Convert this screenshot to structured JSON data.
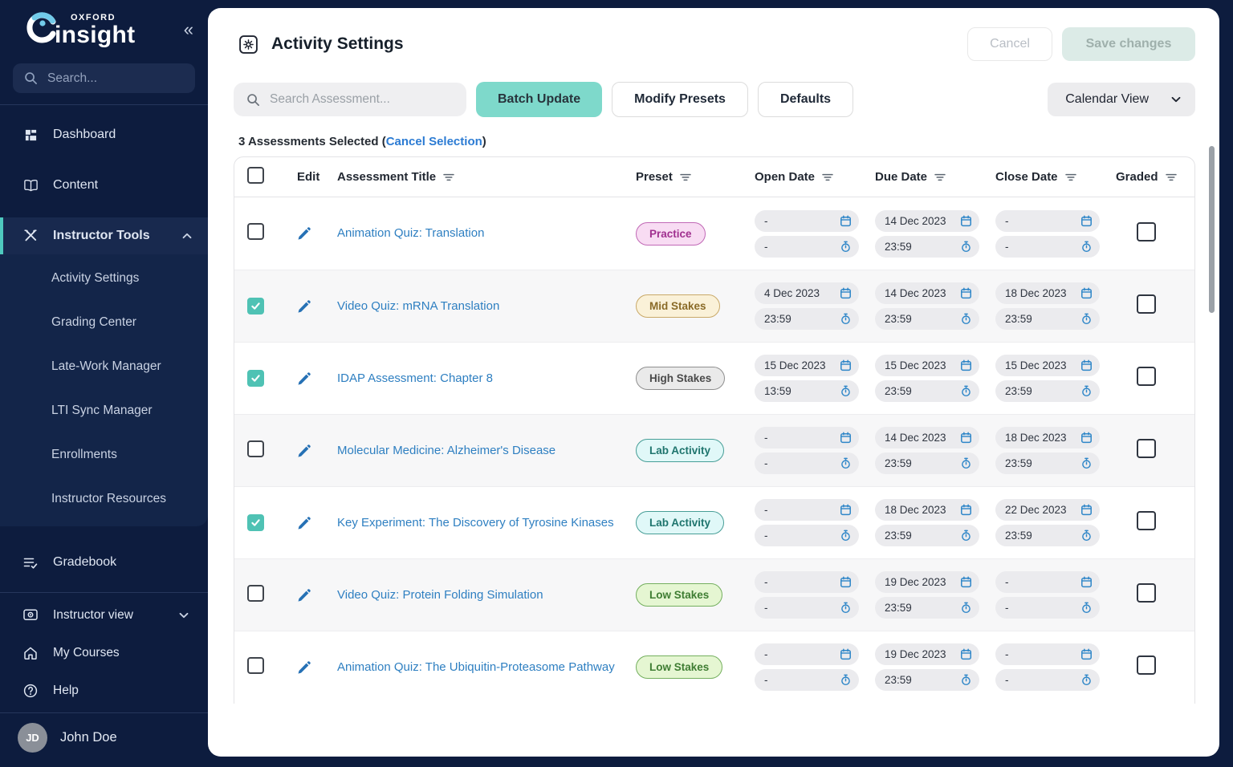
{
  "brand": {
    "oxford": "OXFORD",
    "insight": "insight",
    "collapse_glyph": "«"
  },
  "sidebar": {
    "search_placeholder": "Search...",
    "items": [
      {
        "label": "Dashboard"
      },
      {
        "label": "Content"
      },
      {
        "label": "Instructor Tools"
      }
    ],
    "submenu": [
      "Activity Settings",
      "Grading Center",
      "Late-Work Manager",
      "LTI Sync Manager",
      "Enrollments",
      "Instructor Resources"
    ],
    "gradebook_label": "Gradebook",
    "footer_items": [
      {
        "label": "Instructor view"
      },
      {
        "label": "My Courses"
      },
      {
        "label": "Help"
      }
    ],
    "user": {
      "initials": "JD",
      "name": "John Doe"
    }
  },
  "header": {
    "title": "Activity Settings",
    "cancel_label": "Cancel",
    "save_label": "Save changes"
  },
  "toolbar": {
    "search_placeholder": "Search Assessment...",
    "batch_update_label": "Batch Update",
    "modify_presets_label": "Modify Presets",
    "defaults_label": "Defaults",
    "view_label": "Calendar View"
  },
  "selection": {
    "prefix": "3 Assessments Selected (",
    "link": "Cancel Selection",
    "suffix": ")"
  },
  "table": {
    "columns": {
      "edit": "Edit",
      "title": "Assessment Title",
      "preset": "Preset",
      "open": "Open Date",
      "due": "Due Date",
      "close": "Close Date",
      "graded": "Graded"
    },
    "rows": [
      {
        "selected": false,
        "title": "Animation Quiz: Translation",
        "preset": "Practice",
        "preset_type": "practice",
        "open_date": "-",
        "open_time": "-",
        "due_date": "14 Dec 2023",
        "due_time": "23:59",
        "close_date": "-",
        "close_time": "-",
        "graded": false
      },
      {
        "selected": true,
        "title": "Video Quiz: mRNA Translation",
        "preset": "Mid Stakes",
        "preset_type": "mid",
        "open_date": "4 Dec 2023",
        "open_time": "23:59",
        "due_date": "14 Dec 2023",
        "due_time": "23:59",
        "close_date": "18 Dec 2023",
        "close_time": "23:59",
        "graded": false
      },
      {
        "selected": true,
        "title": "IDAP Assessment: Chapter 8",
        "preset": "High Stakes",
        "preset_type": "high",
        "open_date": "15 Dec 2023",
        "open_time": "13:59",
        "due_date": "15 Dec 2023",
        "due_time": "23:59",
        "close_date": "15 Dec 2023",
        "close_time": "23:59",
        "graded": false
      },
      {
        "selected": false,
        "title": "Molecular Medicine: Alzheimer's Disease",
        "preset": "Lab Activity",
        "preset_type": "lab",
        "open_date": "-",
        "open_time": "-",
        "due_date": "14 Dec 2023",
        "due_time": "23:59",
        "close_date": "18 Dec 2023",
        "close_time": "23:59",
        "graded": false
      },
      {
        "selected": true,
        "title": "Key Experiment: The Discovery of Tyrosine Kinases",
        "preset": "Lab Activity",
        "preset_type": "lab",
        "open_date": "-",
        "open_time": "-",
        "due_date": "18 Dec 2023",
        "due_time": "23:59",
        "close_date": "22 Dec 2023",
        "close_time": "23:59",
        "graded": false
      },
      {
        "selected": false,
        "title": "Video Quiz: Protein Folding Simulation",
        "preset": "Low Stakes",
        "preset_type": "low",
        "open_date": "-",
        "open_time": "-",
        "due_date": "19 Dec 2023",
        "due_time": "23:59",
        "close_date": "-",
        "close_time": "-",
        "graded": false
      },
      {
        "selected": false,
        "title": "Animation Quiz: The Ubiquitin-Proteasome Pathway",
        "preset": "Low Stakes",
        "preset_type": "low",
        "open_date": "-",
        "open_time": "-",
        "due_date": "19 Dec 2023",
        "due_time": "23:59",
        "close_date": "-",
        "close_time": "-",
        "graded": false
      }
    ]
  },
  "colors": {
    "sidebar_navy": "#0D1C3E",
    "accent_teal": "#7ED9CB",
    "checkbox_teal": "#4FC2B4",
    "link_blue": "#2E7FC1",
    "icon_blue": "#2E86C8",
    "badge_practice_text": "#A0308F",
    "badge_mid_text": "#8A6B28",
    "badge_high_text": "#4A4A4A",
    "badge_lab_text": "#1F756E",
    "badge_low_text": "#3F7D33"
  }
}
